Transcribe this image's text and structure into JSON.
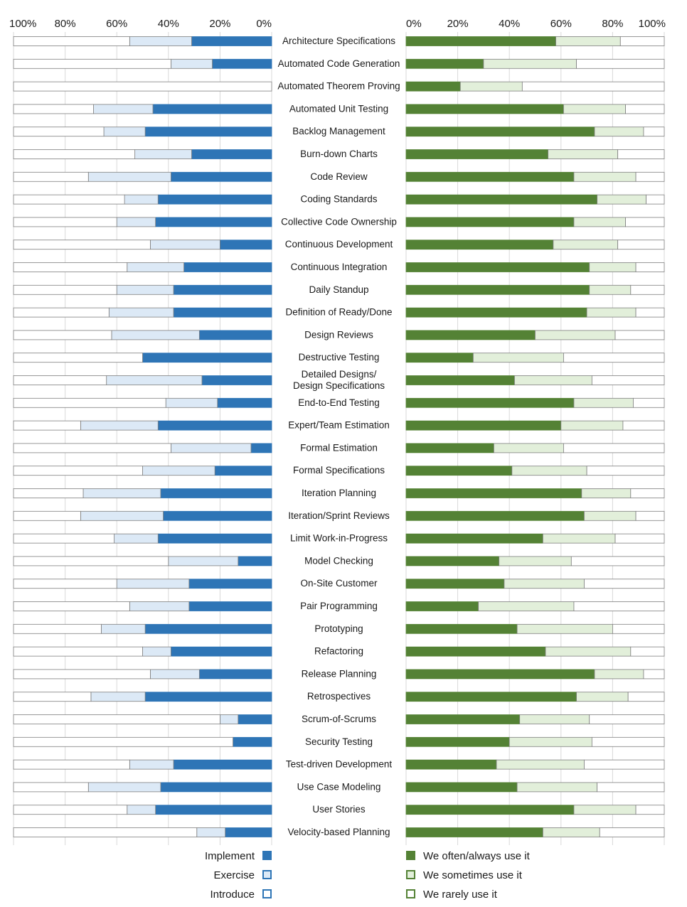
{
  "chart_data": {
    "type": "bar",
    "xlim": [
      0,
      100
    ],
    "left_ticks": [
      "100%",
      "80%",
      "60%",
      "40%",
      "20%",
      "0%"
    ],
    "right_ticks": [
      "0%",
      "20%",
      "40%",
      "60%",
      "80%",
      "100%"
    ],
    "categories": [
      "Architecture Specifications",
      "Automated Code Generation",
      "Automated Theorem Proving",
      "Automated Unit Testing",
      "Backlog Management",
      "Burn-down Charts",
      "Code Review",
      "Coding Standards",
      "Collective Code Ownership",
      "Continuous Development",
      "Continuous Integration",
      "Daily Standup",
      "Definition of Ready/Done",
      "Design Reviews",
      "Destructive Testing",
      "Detailed Designs/\nDesign Specifications",
      "End-to-End Testing",
      "Expert/Team Estimation",
      "Formal Estimation",
      "Formal Specifications",
      "Iteration Planning",
      "Iteration/Sprint Reviews",
      "Limit Work-in-Progress",
      "Model Checking",
      "On-Site Customer",
      "Pair Programming",
      "Prototyping",
      "Refactoring",
      "Release Planning",
      "Retrospectives",
      "Scrum-of-Scrums",
      "Security Testing",
      "Test-driven Development",
      "Use Case Modeling",
      "User Stories",
      "Velocity-based Planning"
    ],
    "left_series": [
      {
        "name": "Implement",
        "color": "#2e75b6",
        "values": [
          31,
          23,
          0,
          46,
          49,
          31,
          39,
          44,
          45,
          20,
          34,
          38,
          38,
          28,
          50,
          27,
          21,
          44,
          8,
          22,
          43,
          42,
          44,
          13,
          32,
          32,
          49,
          39,
          28,
          49,
          13,
          15,
          38,
          43,
          45,
          18
        ]
      },
      {
        "name": "Exercise",
        "color": "#dce9f6",
        "values": [
          24,
          16,
          0,
          23,
          16,
          22,
          32,
          13,
          15,
          27,
          22,
          22,
          25,
          34,
          0,
          37,
          20,
          30,
          31,
          28,
          30,
          32,
          17,
          27,
          28,
          23,
          17,
          11,
          19,
          21,
          7,
          0,
          17,
          28,
          11,
          11
        ]
      },
      {
        "name": "Introduce",
        "color": "#ffffff",
        "values": [
          45,
          61,
          100,
          31,
          35,
          47,
          29,
          43,
          40,
          53,
          44,
          40,
          37,
          38,
          50,
          36,
          59,
          26,
          61,
          50,
          27,
          26,
          39,
          60,
          40,
          45,
          34,
          50,
          53,
          30,
          80,
          85,
          45,
          29,
          44,
          71
        ]
      }
    ],
    "right_series": [
      {
        "name": "We often/always use it",
        "color": "#548235",
        "values": [
          58,
          30,
          21,
          61,
          73,
          55,
          65,
          74,
          65,
          57,
          71,
          71,
          70,
          50,
          26,
          42,
          65,
          60,
          34,
          41,
          68,
          69,
          53,
          36,
          38,
          28,
          43,
          54,
          73,
          66,
          44,
          40,
          35,
          43,
          65,
          53
        ]
      },
      {
        "name": "We sometimes use it",
        "color": "#e2efda",
        "values": [
          25,
          36,
          24,
          24,
          19,
          27,
          24,
          19,
          20,
          25,
          18,
          16,
          19,
          31,
          35,
          30,
          23,
          24,
          27,
          29,
          19,
          20,
          28,
          28,
          31,
          37,
          37,
          33,
          19,
          20,
          27,
          32,
          34,
          31,
          24,
          22
        ]
      },
      {
        "name": "We rarely use it",
        "color": "#ffffff",
        "values": [
          17,
          34,
          55,
          15,
          8,
          18,
          11,
          7,
          15,
          18,
          11,
          13,
          11,
          19,
          39,
          28,
          12,
          16,
          39,
          30,
          13,
          11,
          19,
          36,
          31,
          35,
          20,
          13,
          8,
          14,
          29,
          28,
          31,
          26,
          11,
          25
        ]
      }
    ]
  },
  "legend": {
    "left": [
      {
        "label": "Implement",
        "fill": "#2e75b6",
        "stroke": "#2e75b6"
      },
      {
        "label": "Exercise",
        "fill": "#dce9f6",
        "stroke": "#2e75b6"
      },
      {
        "label": "Introduce",
        "fill": "#ffffff",
        "stroke": "#2e75b6"
      }
    ],
    "right": [
      {
        "label": "We often/always use it",
        "fill": "#548235",
        "stroke": "#548235"
      },
      {
        "label": "We sometimes use it",
        "fill": "#e2efda",
        "stroke": "#548235"
      },
      {
        "label": "We rarely use it",
        "fill": "#ffffff",
        "stroke": "#548235"
      }
    ]
  }
}
